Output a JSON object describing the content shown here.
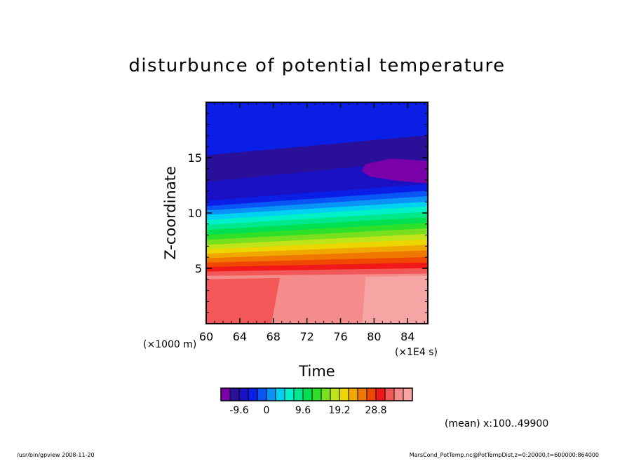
{
  "chart_data": {
    "type": "heatmap",
    "title": "disturbunce of potential temperature",
    "xlabel": "Time",
    "ylabel": "Z-coordinate",
    "x_scale_label": "(×1E4 s)",
    "y_scale_label": "(×1000 m)",
    "xlim": [
      60,
      86.4
    ],
    "ylim": [
      0,
      20
    ],
    "xticks": [
      "60",
      "64",
      "68",
      "72",
      "76",
      "80",
      "84"
    ],
    "yticks": [
      "5",
      "10",
      "15"
    ],
    "colorbar": {
      "colors": [
        "#7a00a8",
        "#2a0f99",
        "#1a10c4",
        "#0b1ee6",
        "#0a55f5",
        "#0a93f7",
        "#00d0f2",
        "#00f0c8",
        "#00e88c",
        "#00e050",
        "#2ee02a",
        "#78e01e",
        "#c0e41a",
        "#ecd600",
        "#f0a800",
        "#f07800",
        "#f04800",
        "#f01818",
        "#f25858",
        "#f58c8c",
        "#f7a4a4"
      ],
      "tick_labels": [
        "-9.6",
        "0",
        "9.6",
        "19.2",
        "28.8"
      ]
    },
    "note": "(mean) x:100..49900"
  },
  "footer": {
    "left": "/usr/bin/gpview   2008-11-20",
    "right": "MarsCond_PotTemp.nc@PotTempDist,z=0:20000,t=600000:864000"
  }
}
